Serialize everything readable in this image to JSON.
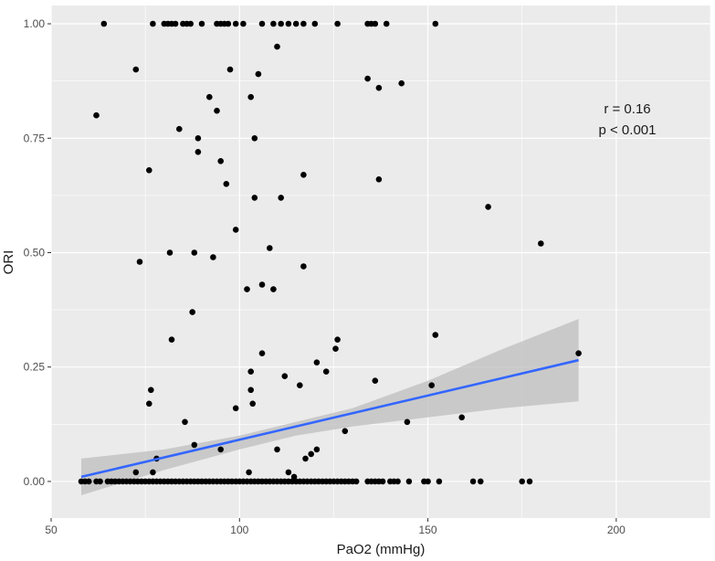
{
  "chart_data": {
    "type": "scatter",
    "title": "",
    "xlabel": "PaO2 (mmHg)",
    "ylabel": "ORI",
    "xlim": [
      50,
      225
    ],
    "ylim": [
      -0.08,
      1.04
    ],
    "x_ticks": [
      50,
      100,
      150,
      200
    ],
    "x_tick_labels": [
      "50",
      "100",
      "150",
      "200"
    ],
    "y_ticks": [
      0,
      0.25,
      0.5,
      0.75,
      1
    ],
    "y_tick_labels": [
      "0.00",
      "0.25",
      "0.50",
      "0.75",
      "1.00"
    ],
    "grid": true,
    "annotation": {
      "r": "r = 0.16",
      "p": "p < 0.001"
    },
    "colors": {
      "panel": "#ebebeb",
      "grid": "#ffffff",
      "points": "#000000",
      "fit": "#3366ff",
      "band": "#bdbdbd"
    },
    "points": [
      [
        64,
        1
      ],
      [
        77,
        1
      ],
      [
        80,
        1
      ],
      [
        81,
        1
      ],
      [
        82,
        1
      ],
      [
        83,
        1
      ],
      [
        85,
        1
      ],
      [
        86,
        1
      ],
      [
        87,
        1
      ],
      [
        90,
        1
      ],
      [
        94,
        1
      ],
      [
        95,
        1
      ],
      [
        96,
        1
      ],
      [
        97,
        1
      ],
      [
        99,
        1
      ],
      [
        101,
        1
      ],
      [
        106,
        1
      ],
      [
        109,
        1
      ],
      [
        111,
        1
      ],
      [
        113,
        1
      ],
      [
        115,
        1
      ],
      [
        117,
        1
      ],
      [
        120,
        1
      ],
      [
        126,
        1
      ],
      [
        134,
        1
      ],
      [
        135,
        1
      ],
      [
        136,
        1
      ],
      [
        139,
        1
      ],
      [
        152,
        1
      ],
      [
        110,
        0.95
      ],
      [
        72.5,
        0.9
      ],
      [
        97.5,
        0.9
      ],
      [
        105,
        0.89
      ],
      [
        134,
        0.88
      ],
      [
        143,
        0.87
      ],
      [
        137,
        0.86
      ],
      [
        92,
        0.84
      ],
      [
        103,
        0.84
      ],
      [
        94,
        0.81
      ],
      [
        62,
        0.8
      ],
      [
        84,
        0.77
      ],
      [
        89,
        0.75
      ],
      [
        104,
        0.75
      ],
      [
        89,
        0.72
      ],
      [
        95,
        0.7
      ],
      [
        76,
        0.68
      ],
      [
        117,
        0.67
      ],
      [
        137,
        0.66
      ],
      [
        96.5,
        0.65
      ],
      [
        104,
        0.62
      ],
      [
        111,
        0.62
      ],
      [
        166,
        0.6
      ],
      [
        99,
        0.55
      ],
      [
        180,
        0.52
      ],
      [
        108,
        0.51
      ],
      [
        81.5,
        0.5
      ],
      [
        88,
        0.5
      ],
      [
        93,
        0.49
      ],
      [
        73.5,
        0.48
      ],
      [
        117,
        0.47
      ],
      [
        106,
        0.43
      ],
      [
        102,
        0.42
      ],
      [
        109,
        0.42
      ],
      [
        87.5,
        0.37
      ],
      [
        152,
        0.32
      ],
      [
        82,
        0.31
      ],
      [
        126,
        0.31
      ],
      [
        106,
        0.28
      ],
      [
        190,
        0.28
      ],
      [
        125.5,
        0.29
      ],
      [
        120.5,
        0.26
      ],
      [
        103,
        0.24
      ],
      [
        123,
        0.24
      ],
      [
        103,
        0.2
      ],
      [
        76.5,
        0.2
      ],
      [
        112,
        0.23
      ],
      [
        136,
        0.22
      ],
      [
        151,
        0.21
      ],
      [
        116,
        0.21
      ],
      [
        103.5,
        0.17
      ],
      [
        76,
        0.17
      ],
      [
        99,
        0.16
      ],
      [
        159,
        0.14
      ],
      [
        85.5,
        0.13
      ],
      [
        144.5,
        0.13
      ],
      [
        128,
        0.11
      ],
      [
        88,
        0.08
      ],
      [
        95,
        0.07
      ],
      [
        110,
        0.07
      ],
      [
        120.5,
        0.07
      ],
      [
        119,
        0.06
      ],
      [
        78,
        0.05
      ],
      [
        117.5,
        0.05
      ],
      [
        72.5,
        0.02
      ],
      [
        77,
        0.02
      ],
      [
        102.5,
        0.02
      ],
      [
        113,
        0.02
      ],
      [
        114.5,
        0.01
      ],
      [
        58,
        0
      ],
      [
        59,
        0
      ],
      [
        60,
        0
      ],
      [
        62,
        0
      ],
      [
        63,
        0
      ],
      [
        65,
        0
      ],
      [
        66,
        0
      ],
      [
        67,
        0
      ],
      [
        68,
        0
      ],
      [
        69,
        0
      ],
      [
        70,
        0
      ],
      [
        71,
        0
      ],
      [
        72,
        0
      ],
      [
        73,
        0
      ],
      [
        74,
        0
      ],
      [
        75,
        0
      ],
      [
        76,
        0
      ],
      [
        77,
        0
      ],
      [
        78,
        0
      ],
      [
        79,
        0
      ],
      [
        80,
        0
      ],
      [
        81,
        0
      ],
      [
        82,
        0
      ],
      [
        83,
        0
      ],
      [
        84,
        0
      ],
      [
        85,
        0
      ],
      [
        86,
        0
      ],
      [
        87,
        0
      ],
      [
        88,
        0
      ],
      [
        89,
        0
      ],
      [
        90,
        0
      ],
      [
        91,
        0
      ],
      [
        92,
        0
      ],
      [
        93,
        0
      ],
      [
        94,
        0
      ],
      [
        95,
        0
      ],
      [
        96,
        0
      ],
      [
        97,
        0
      ],
      [
        98,
        0
      ],
      [
        99,
        0
      ],
      [
        100,
        0
      ],
      [
        101,
        0
      ],
      [
        102,
        0
      ],
      [
        103,
        0
      ],
      [
        104,
        0
      ],
      [
        105,
        0
      ],
      [
        106,
        0
      ],
      [
        107,
        0
      ],
      [
        108,
        0
      ],
      [
        109,
        0
      ],
      [
        110,
        0
      ],
      [
        111,
        0
      ],
      [
        112,
        0
      ],
      [
        113,
        0
      ],
      [
        114,
        0
      ],
      [
        115,
        0
      ],
      [
        116,
        0
      ],
      [
        117,
        0
      ],
      [
        118,
        0
      ],
      [
        119,
        0
      ],
      [
        120,
        0
      ],
      [
        121,
        0
      ],
      [
        122,
        0
      ],
      [
        123,
        0
      ],
      [
        124,
        0
      ],
      [
        125,
        0
      ],
      [
        126,
        0
      ],
      [
        127,
        0
      ],
      [
        128,
        0
      ],
      [
        129,
        0
      ],
      [
        130,
        0
      ],
      [
        131,
        0
      ],
      [
        134,
        0
      ],
      [
        135,
        0
      ],
      [
        136,
        0
      ],
      [
        137,
        0
      ],
      [
        138,
        0
      ],
      [
        140,
        0
      ],
      [
        141,
        0
      ],
      [
        142,
        0
      ],
      [
        145,
        0
      ],
      [
        149,
        0
      ],
      [
        150,
        0
      ],
      [
        153,
        0
      ],
      [
        162,
        0
      ],
      [
        164,
        0
      ],
      [
        175,
        0
      ],
      [
        177,
        0
      ]
    ],
    "fit_line": {
      "x": [
        58,
        190
      ],
      "y": [
        0.01,
        0.265
      ]
    },
    "confidence_band": {
      "x": [
        58,
        80,
        100,
        115,
        130,
        150,
        170,
        190
      ],
      "lower": [
        -0.03,
        0.025,
        0.07,
        0.1,
        0.12,
        0.14,
        0.16,
        0.175
      ],
      "upper": [
        0.05,
        0.07,
        0.1,
        0.13,
        0.16,
        0.22,
        0.29,
        0.355
      ]
    }
  }
}
